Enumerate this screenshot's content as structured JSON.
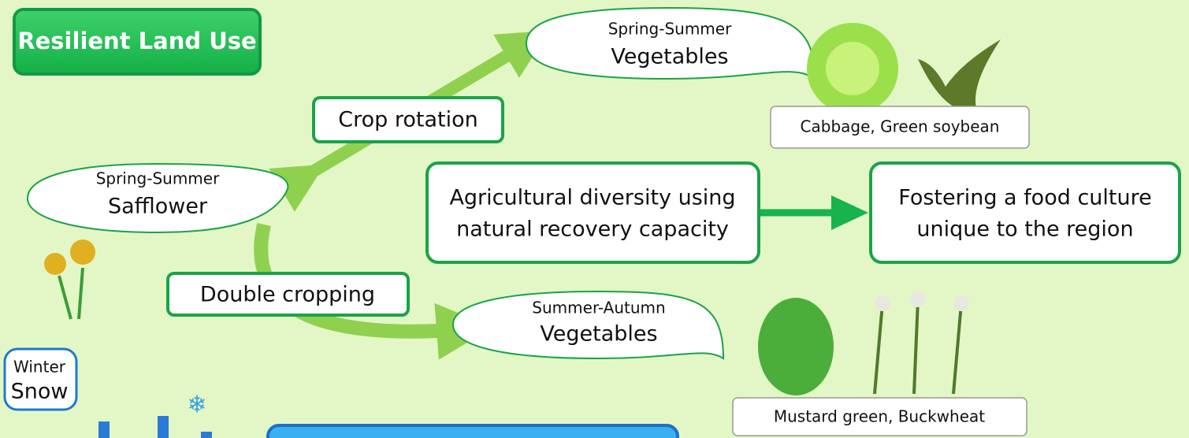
{
  "title": "Resilient Land Use",
  "nodes": {
    "spring_vegetables": {
      "season": "Spring-Summer",
      "crop": "Vegetables"
    },
    "spring_safflower": {
      "season": "Spring-Summer",
      "crop": "Safflower"
    },
    "summer_vegetables": {
      "season": "Summer-Autumn",
      "crop": "Vegetables"
    },
    "winter": {
      "season": "Winter",
      "crop": "Snow"
    },
    "diversity": {
      "lines": [
        "Agricultural diversity using",
        "natural recovery capacity"
      ]
    },
    "food_culture": {
      "lines": [
        "Fostering a food culture",
        "unique to the region"
      ]
    }
  },
  "labels": {
    "crop_rotation": "Crop rotation",
    "double_cropping": "Double cropping",
    "spring_examples": "Cabbage, Green soybean",
    "summer_examples": "Mustard green, Buckwheat"
  }
}
